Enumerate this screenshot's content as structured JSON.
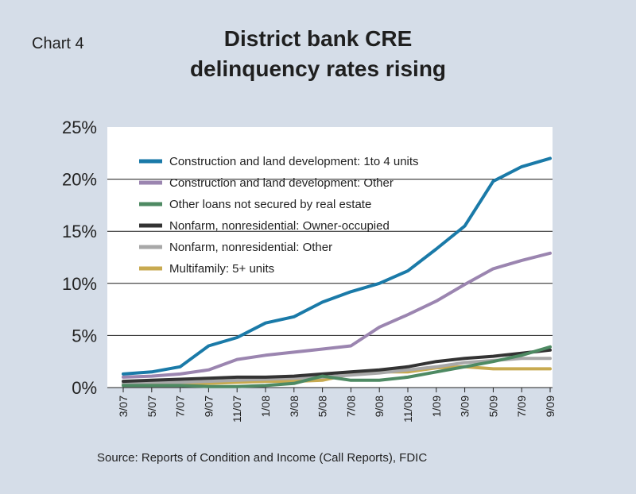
{
  "header": {
    "chart_number": "Chart 4",
    "title_line1": "District bank CRE",
    "title_line2": "delinquency rates rising"
  },
  "footer": {
    "source": "Source: Reports of Condition and Income (Call Reports), FDIC"
  },
  "chart_data": {
    "type": "line",
    "title": "District bank CRE delinquency rates rising",
    "xlabel": "",
    "ylabel": "",
    "ylim": [
      0,
      25
    ],
    "y_ticks": [
      "0%",
      "5%",
      "10%",
      "15%",
      "20%",
      "25%"
    ],
    "y_tick_values": [
      0,
      5,
      10,
      15,
      20,
      25
    ],
    "grid": true,
    "legend_position": "top-left",
    "x": [
      "3/07",
      "5/07",
      "7/07",
      "9/07",
      "11/07",
      "1/08",
      "3/08",
      "5/08",
      "7/08",
      "9/08",
      "11/08",
      "1/09",
      "3/09",
      "5/09",
      "7/09",
      "9/09"
    ],
    "series": [
      {
        "name": "Construction and land development: 1to 4 units",
        "color": "#1a7aa8",
        "values": [
          1.3,
          1.5,
          2.0,
          4.0,
          4.8,
          6.2,
          6.8,
          8.2,
          9.2,
          10.0,
          11.2,
          13.3,
          15.5,
          19.8,
          21.2,
          22.0
        ]
      },
      {
        "name": "Construction and land development: Other",
        "color": "#9b85b0",
        "values": [
          1.0,
          1.1,
          1.3,
          1.7,
          2.7,
          3.1,
          3.4,
          3.7,
          4.0,
          5.8,
          7.0,
          8.3,
          9.9,
          11.4,
          12.2,
          12.9
        ]
      },
      {
        "name": "Other loans not secured by real estate",
        "color": "#4e8a63",
        "values": [
          0.2,
          0.2,
          0.2,
          0.1,
          0.1,
          0.2,
          0.4,
          1.1,
          0.7,
          0.7,
          1.0,
          1.5,
          2.0,
          2.5,
          3.1,
          3.9
        ]
      },
      {
        "name": "Nonfarm, nonresidential: Owner-occupied",
        "color": "#333333",
        "values": [
          0.6,
          0.7,
          0.8,
          0.9,
          1.0,
          1.0,
          1.1,
          1.3,
          1.5,
          1.7,
          2.0,
          2.5,
          2.8,
          3.0,
          3.3,
          3.6
        ]
      },
      {
        "name": "Nonfarm, nonresidential: Other",
        "color": "#a8a8a8",
        "values": [
          0.4,
          0.5,
          0.5,
          0.6,
          0.7,
          0.8,
          0.9,
          1.0,
          1.2,
          1.4,
          1.7,
          2.0,
          2.4,
          2.6,
          2.8,
          2.8
        ]
      },
      {
        "name": "Multifamily: 5+ units",
        "color": "#c8aa50",
        "values": [
          0.3,
          0.3,
          0.4,
          0.4,
          0.5,
          0.6,
          0.6,
          0.7,
          1.3,
          1.5,
          1.5,
          1.9,
          2.0,
          1.8,
          1.8,
          1.8
        ]
      }
    ]
  }
}
